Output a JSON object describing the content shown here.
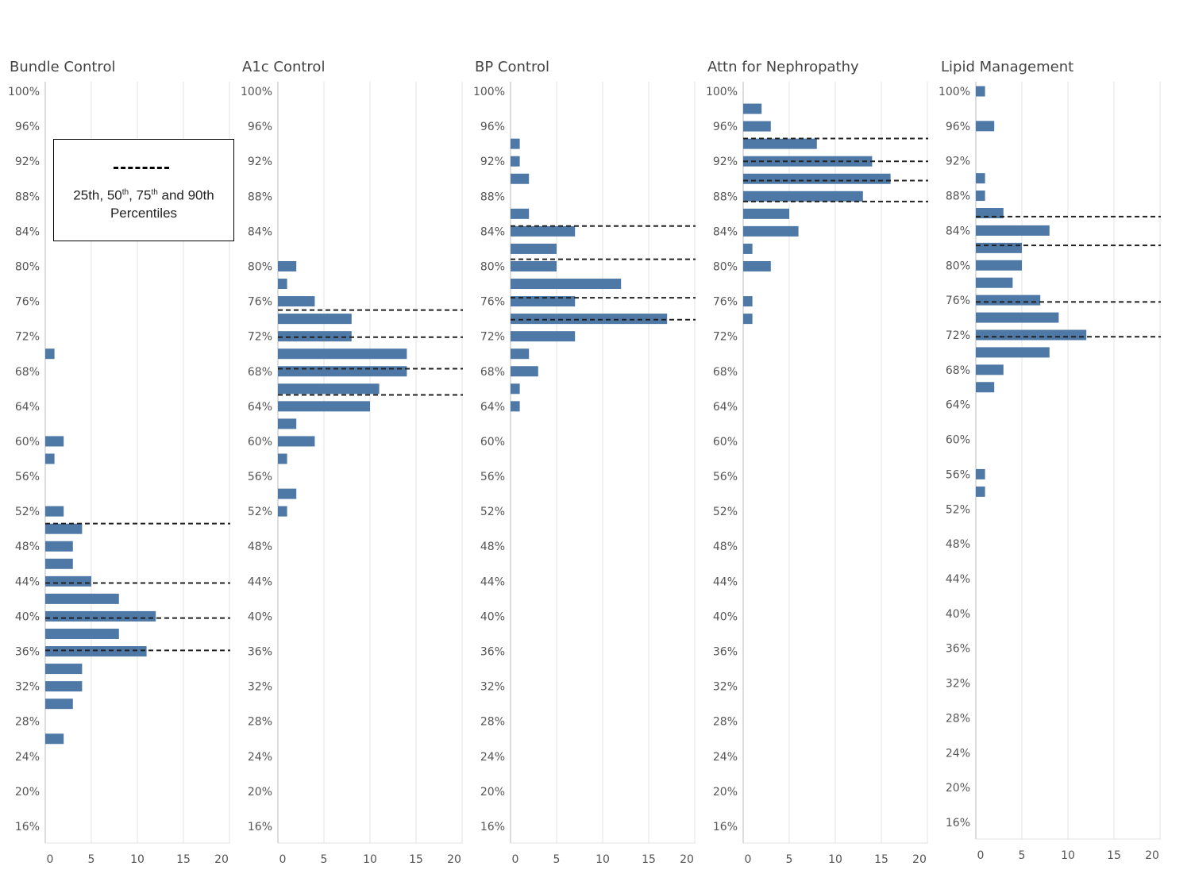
{
  "legend": {
    "pre": "25th, 50",
    "sup1": "th",
    "mid": ", 75",
    "sup2": "th",
    "post": " and 90th",
    "line2": "Percentiles"
  },
  "colors": {
    "bar": "#4e79a7",
    "grid": "#e3e3e3",
    "axis": "#bbbbbb",
    "percentile": "#222222"
  },
  "chart_data": [
    {
      "type": "bar",
      "orientation": "horizontal",
      "title": "Bundle Control",
      "y_ticks": [
        "100%",
        "96%",
        "92%",
        "88%",
        "84%",
        "80%",
        "76%",
        "72%",
        "68%",
        "64%",
        "60%",
        "56%",
        "52%",
        "48%",
        "44%",
        "40%",
        "36%",
        "32%",
        "28%",
        "24%",
        "20%",
        "16%"
      ],
      "x_ticks": [
        "0",
        "5",
        "10",
        "15",
        "20"
      ],
      "ylim": [
        16,
        100
      ],
      "xlim": [
        0,
        20
      ],
      "bars": [
        {
          "y": 70,
          "v": 1
        },
        {
          "y": 60,
          "v": 2
        },
        {
          "y": 58,
          "v": 1
        },
        {
          "y": 52,
          "v": 2
        },
        {
          "y": 50,
          "v": 4
        },
        {
          "y": 48,
          "v": 3
        },
        {
          "y": 46,
          "v": 3
        },
        {
          "y": 44,
          "v": 5
        },
        {
          "y": 42,
          "v": 8
        },
        {
          "y": 40,
          "v": 12
        },
        {
          "y": 38,
          "v": 8
        },
        {
          "y": 36,
          "v": 11
        },
        {
          "y": 34,
          "v": 4
        },
        {
          "y": 32,
          "v": 4
        },
        {
          "y": 30,
          "v": 3
        },
        {
          "y": 26,
          "v": 2
        }
      ],
      "percentiles": [
        50.6,
        43.8,
        39.8,
        36.1
      ]
    },
    {
      "type": "bar",
      "orientation": "horizontal",
      "title": "A1c Control",
      "y_ticks": [
        "100%",
        "96%",
        "92%",
        "88%",
        "84%",
        "80%",
        "76%",
        "72%",
        "68%",
        "64%",
        "60%",
        "56%",
        "52%",
        "48%",
        "44%",
        "40%",
        "36%",
        "32%",
        "28%",
        "24%",
        "20%",
        "16%"
      ],
      "x_ticks": [
        "0",
        "5",
        "10",
        "15",
        "20"
      ],
      "ylim": [
        16,
        100
      ],
      "xlim": [
        0,
        20
      ],
      "bars": [
        {
          "y": 80,
          "v": 2
        },
        {
          "y": 78,
          "v": 1
        },
        {
          "y": 76,
          "v": 4
        },
        {
          "y": 74,
          "v": 8
        },
        {
          "y": 72,
          "v": 8
        },
        {
          "y": 70,
          "v": 14
        },
        {
          "y": 68,
          "v": 14
        },
        {
          "y": 66,
          "v": 11
        },
        {
          "y": 64,
          "v": 10
        },
        {
          "y": 62,
          "v": 2
        },
        {
          "y": 60,
          "v": 4
        },
        {
          "y": 58,
          "v": 1
        },
        {
          "y": 54,
          "v": 2
        },
        {
          "y": 52,
          "v": 1
        }
      ],
      "percentiles": [
        75.0,
        71.9,
        68.3,
        65.3
      ]
    },
    {
      "type": "bar",
      "orientation": "horizontal",
      "title": "BP Control",
      "y_ticks": [
        "100%",
        "96%",
        "92%",
        "88%",
        "84%",
        "80%",
        "76%",
        "72%",
        "68%",
        "64%",
        "60%",
        "56%",
        "52%",
        "48%",
        "44%",
        "40%",
        "36%",
        "32%",
        "28%",
        "24%",
        "20%",
        "16%"
      ],
      "x_ticks": [
        "0",
        "5",
        "10",
        "15",
        "20"
      ],
      "ylim": [
        16,
        100
      ],
      "xlim": [
        0,
        20
      ],
      "bars": [
        {
          "y": 94,
          "v": 1
        },
        {
          "y": 92,
          "v": 1
        },
        {
          "y": 90,
          "v": 2
        },
        {
          "y": 86,
          "v": 2
        },
        {
          "y": 84,
          "v": 7
        },
        {
          "y": 82,
          "v": 5
        },
        {
          "y": 80,
          "v": 5
        },
        {
          "y": 78,
          "v": 12
        },
        {
          "y": 76,
          "v": 7
        },
        {
          "y": 74,
          "v": 17
        },
        {
          "y": 72,
          "v": 7
        },
        {
          "y": 70,
          "v": 2
        },
        {
          "y": 68,
          "v": 3
        },
        {
          "y": 66,
          "v": 1
        },
        {
          "y": 64,
          "v": 1
        }
      ],
      "percentiles": [
        84.6,
        80.8,
        76.4,
        73.9
      ]
    },
    {
      "type": "bar",
      "orientation": "horizontal",
      "title": "Attn for Nephropathy",
      "y_ticks": [
        "100%",
        "96%",
        "92%",
        "88%",
        "84%",
        "80%",
        "76%",
        "72%",
        "68%",
        "64%",
        "60%",
        "56%",
        "52%",
        "48%",
        "44%",
        "40%",
        "36%",
        "32%",
        "28%",
        "24%",
        "20%",
        "16%"
      ],
      "x_ticks": [
        "0",
        "5",
        "10",
        "15",
        "20"
      ],
      "ylim": [
        16,
        100
      ],
      "xlim": [
        0,
        20
      ],
      "bars": [
        {
          "y": 98,
          "v": 2
        },
        {
          "y": 96,
          "v": 3
        },
        {
          "y": 94,
          "v": 8
        },
        {
          "y": 92,
          "v": 14
        },
        {
          "y": 90,
          "v": 16
        },
        {
          "y": 88,
          "v": 13
        },
        {
          "y": 86,
          "v": 5
        },
        {
          "y": 84,
          "v": 6
        },
        {
          "y": 82,
          "v": 1
        },
        {
          "y": 80,
          "v": 3
        },
        {
          "y": 76,
          "v": 1
        },
        {
          "y": 74,
          "v": 1
        }
      ],
      "percentiles": [
        94.6,
        92.0,
        89.8,
        87.4
      ]
    },
    {
      "type": "bar",
      "orientation": "horizontal",
      "title": "Lipid Management",
      "y_ticks": [
        "100%",
        "96%",
        "92%",
        "88%",
        "84%",
        "80%",
        "76%",
        "72%",
        "68%",
        "64%",
        "60%",
        "56%",
        "52%",
        "48%",
        "44%",
        "40%",
        "36%",
        "32%",
        "28%",
        "24%",
        "20%",
        "16%"
      ],
      "x_ticks": [
        "0",
        "5",
        "10",
        "15",
        "20"
      ],
      "ylim": [
        16,
        100
      ],
      "xlim": [
        0,
        20
      ],
      "bars": [
        {
          "y": 100,
          "v": 1
        },
        {
          "y": 96,
          "v": 2
        },
        {
          "y": 90,
          "v": 1
        },
        {
          "y": 88,
          "v": 1
        },
        {
          "y": 86,
          "v": 3
        },
        {
          "y": 84,
          "v": 8
        },
        {
          "y": 82,
          "v": 5
        },
        {
          "y": 80,
          "v": 5
        },
        {
          "y": 78,
          "v": 4
        },
        {
          "y": 76,
          "v": 7
        },
        {
          "y": 74,
          "v": 9
        },
        {
          "y": 72,
          "v": 12
        },
        {
          "y": 70,
          "v": 8
        },
        {
          "y": 68,
          "v": 3
        },
        {
          "y": 66,
          "v": 2
        },
        {
          "y": 56,
          "v": 1
        },
        {
          "y": 54,
          "v": 1
        }
      ],
      "percentiles": [
        85.6,
        82.3,
        75.8,
        71.8
      ]
    }
  ]
}
